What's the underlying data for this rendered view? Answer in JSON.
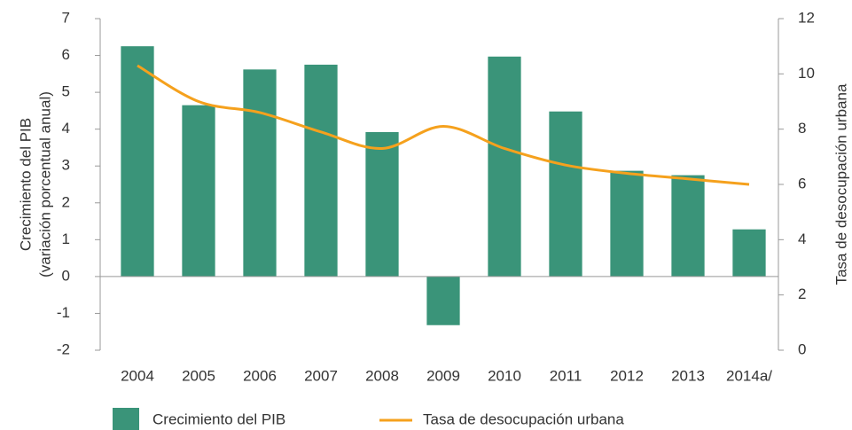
{
  "chart_data": {
    "type": "bar_line",
    "categories": [
      "2004",
      "2005",
      "2006",
      "2007",
      "2008",
      "2009",
      "2010",
      "2011",
      "2012",
      "2013",
      "2014a/"
    ],
    "series": [
      {
        "name": "Crecimiento del PIB",
        "type": "bar",
        "color": "#3a9479",
        "values": [
          6.25,
          4.65,
          5.62,
          5.75,
          3.92,
          -1.32,
          5.97,
          4.48,
          2.87,
          2.75,
          1.28
        ]
      },
      {
        "name": "Tasa de desocupación urbana",
        "type": "line",
        "axis": "y2",
        "color": "#f5a11d",
        "values": [
          10.3,
          9.0,
          8.6,
          7.9,
          7.3,
          8.1,
          7.3,
          6.7,
          6.4,
          6.2,
          6.0
        ]
      }
    ],
    "ylabel": [
      "Crecimiento del PIB",
      "(variación porcentual anual)"
    ],
    "y2label": "Tasa de desocupación urbana",
    "ylim": [
      -2,
      7
    ],
    "yticks": [
      -2,
      -1,
      0,
      1,
      2,
      3,
      4,
      5,
      6,
      7
    ],
    "y2lim": [
      0,
      12
    ],
    "y2ticks": [
      0,
      2,
      4,
      6,
      8,
      10,
      12
    ],
    "legend": "bottom"
  }
}
